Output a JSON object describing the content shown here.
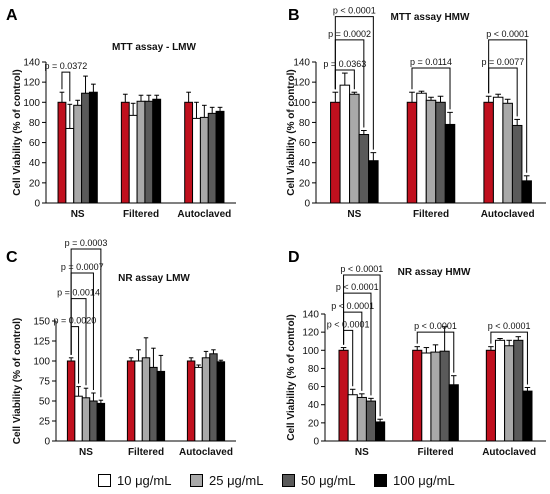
{
  "colors": {
    "red": "#c0101e",
    "white": "#ffffff",
    "light": "#a9a9a9",
    "dark": "#5a5a5a",
    "black": "#000000"
  },
  "legend": [
    {
      "label": "10 μg/mL",
      "color": "#ffffff"
    },
    {
      "label": "25 μg/mL",
      "color": "#a9a9a9"
    },
    {
      "label": "50 μg/mL",
      "color": "#5a5a5a"
    },
    {
      "label": "100 μg/mL",
      "color": "#000000"
    }
  ],
  "chart_data": [
    {
      "panel": "A",
      "type": "bar",
      "title": "MTT assay - LMW",
      "ylabel": "Cell Viability (% of control)",
      "ylim": [
        0,
        140
      ],
      "yticks": [
        0,
        20,
        40,
        60,
        80,
        100,
        120,
        140
      ],
      "categories": [
        "NS",
        "Filtered",
        "Autoclaved"
      ],
      "series_colors": [
        "#c0101e",
        "#ffffff",
        "#a9a9a9",
        "#5a5a5a",
        "#000000"
      ],
      "values": [
        [
          100,
          74,
          97,
          109,
          110
        ],
        [
          100,
          87,
          101,
          101,
          103
        ],
        [
          100,
          84,
          85,
          89,
          91
        ]
      ],
      "errors": [
        [
          10,
          24,
          5,
          17,
          8
        ],
        [
          8,
          12,
          6,
          6,
          4
        ],
        [
          10,
          16,
          12,
          6,
          4
        ]
      ],
      "annotations": [
        {
          "text": "p = 0.0372",
          "from": [
            0,
            0
          ],
          "to": [
            0,
            1
          ],
          "level": 130
        }
      ]
    },
    {
      "panel": "B",
      "type": "bar",
      "title": "MTT assay HMW",
      "ylabel": "Cell Viability (% of control)",
      "ylim": [
        0,
        140
      ],
      "yticks": [
        0,
        20,
        40,
        60,
        80,
        100,
        120,
        140
      ],
      "categories": [
        "NS",
        "Filtered",
        "Autoclaved"
      ],
      "series_colors": [
        "#c0101e",
        "#ffffff",
        "#a9a9a9",
        "#5a5a5a",
        "#000000"
      ],
      "values": [
        [
          100,
          117,
          108,
          68,
          42
        ],
        [
          100,
          109,
          102,
          100,
          78
        ],
        [
          100,
          105,
          99,
          77,
          22
        ]
      ],
      "errors": [
        [
          10,
          12,
          2,
          4,
          8
        ],
        [
          10,
          2,
          3,
          6,
          12
        ],
        [
          6,
          3,
          4,
          6,
          5
        ]
      ],
      "annotations": [
        {
          "text": "p < 0.0001",
          "from": [
            0,
            0
          ],
          "to": [
            0,
            4
          ],
          "level": 185
        },
        {
          "text": "p = 0.0002",
          "from": [
            0,
            0
          ],
          "to": [
            0,
            3
          ],
          "level": 162
        },
        {
          "text": "p = 0.0363",
          "from": [
            0,
            0
          ],
          "to": [
            0,
            2
          ],
          "level": 132
        },
        {
          "text": "p = 0.0114",
          "from": [
            1,
            0
          ],
          "to": [
            1,
            4
          ],
          "level": 134
        },
        {
          "text": "p < 0.0001",
          "from": [
            2,
            0
          ],
          "to": [
            2,
            4
          ],
          "level": 162
        },
        {
          "text": "p = 0.0077",
          "from": [
            2,
            0
          ],
          "to": [
            2,
            3
          ],
          "level": 134
        }
      ]
    },
    {
      "panel": "C",
      "type": "bar",
      "title": "NR assay LMW",
      "ylabel": "Cell Viability (% of control)",
      "ylim": [
        0,
        150
      ],
      "yticks": [
        0,
        25,
        50,
        75,
        100,
        125,
        150
      ],
      "categories": [
        "NS",
        "Filtered",
        "Autoclaved"
      ],
      "series_colors": [
        "#c0101e",
        "#ffffff",
        "#a9a9a9",
        "#5a5a5a",
        "#000000"
      ],
      "values": [
        [
          100,
          56,
          54,
          50,
          47
        ],
        [
          100,
          100,
          104,
          92,
          87
        ],
        [
          100,
          92,
          104,
          109,
          99
        ]
      ],
      "errors": [
        [
          4,
          12,
          12,
          10,
          4
        ],
        [
          4,
          14,
          25,
          24,
          20
        ],
        [
          4,
          3,
          8,
          5,
          2
        ]
      ],
      "annotations": [
        {
          "text": "p = 0.0003",
          "from": [
            0,
            0
          ],
          "to": [
            0,
            4
          ],
          "level": 240
        },
        {
          "text": "p = 0.0007",
          "from": [
            0,
            0
          ],
          "to": [
            0,
            3
          ],
          "level": 210
        },
        {
          "text": "p = 0.0014",
          "from": [
            0,
            0
          ],
          "to": [
            0,
            2
          ],
          "level": 178
        },
        {
          "text": "p = 0.0020",
          "from": [
            0,
            0
          ],
          "to": [
            0,
            1
          ],
          "level": 143
        }
      ]
    },
    {
      "panel": "D",
      "type": "bar",
      "title": "NR assay HMW",
      "ylabel": "Cell Viability (% of control)",
      "ylim": [
        0,
        140
      ],
      "yticks": [
        0,
        20,
        40,
        60,
        80,
        100,
        120,
        140
      ],
      "categories": [
        "NS",
        "Filtered",
        "Autoclaved"
      ],
      "series_colors": [
        "#c0101e",
        "#ffffff",
        "#a9a9a9",
        "#5a5a5a",
        "#000000"
      ],
      "values": [
        [
          100,
          51,
          48,
          44,
          21
        ],
        [
          100,
          97,
          98,
          99,
          62
        ],
        [
          100,
          111,
          105,
          111,
          55
        ]
      ],
      "errors": [
        [
          3,
          6,
          4,
          3,
          3
        ],
        [
          4,
          6,
          8,
          27,
          10
        ],
        [
          4,
          2,
          6,
          4,
          4
        ]
      ],
      "annotations": [
        {
          "text": "p < 0.0001",
          "from": [
            0,
            0
          ],
          "to": [
            0,
            4
          ],
          "level": 183
        },
        {
          "text": "p < 0.0001",
          "from": [
            0,
            0
          ],
          "to": [
            0,
            3
          ],
          "level": 163
        },
        {
          "text": "p < 0.0001",
          "from": [
            0,
            0
          ],
          "to": [
            0,
            2
          ],
          "level": 142
        },
        {
          "text": "p < 0.0001",
          "from": [
            0,
            0
          ],
          "to": [
            0,
            1
          ],
          "level": 122
        },
        {
          "text": "p < 0.0001",
          "from": [
            1,
            0
          ],
          "to": [
            1,
            4
          ],
          "level": 120
        },
        {
          "text": "p < 0.0001",
          "from": [
            2,
            0
          ],
          "to": [
            2,
            4
          ],
          "level": 120
        }
      ]
    }
  ]
}
